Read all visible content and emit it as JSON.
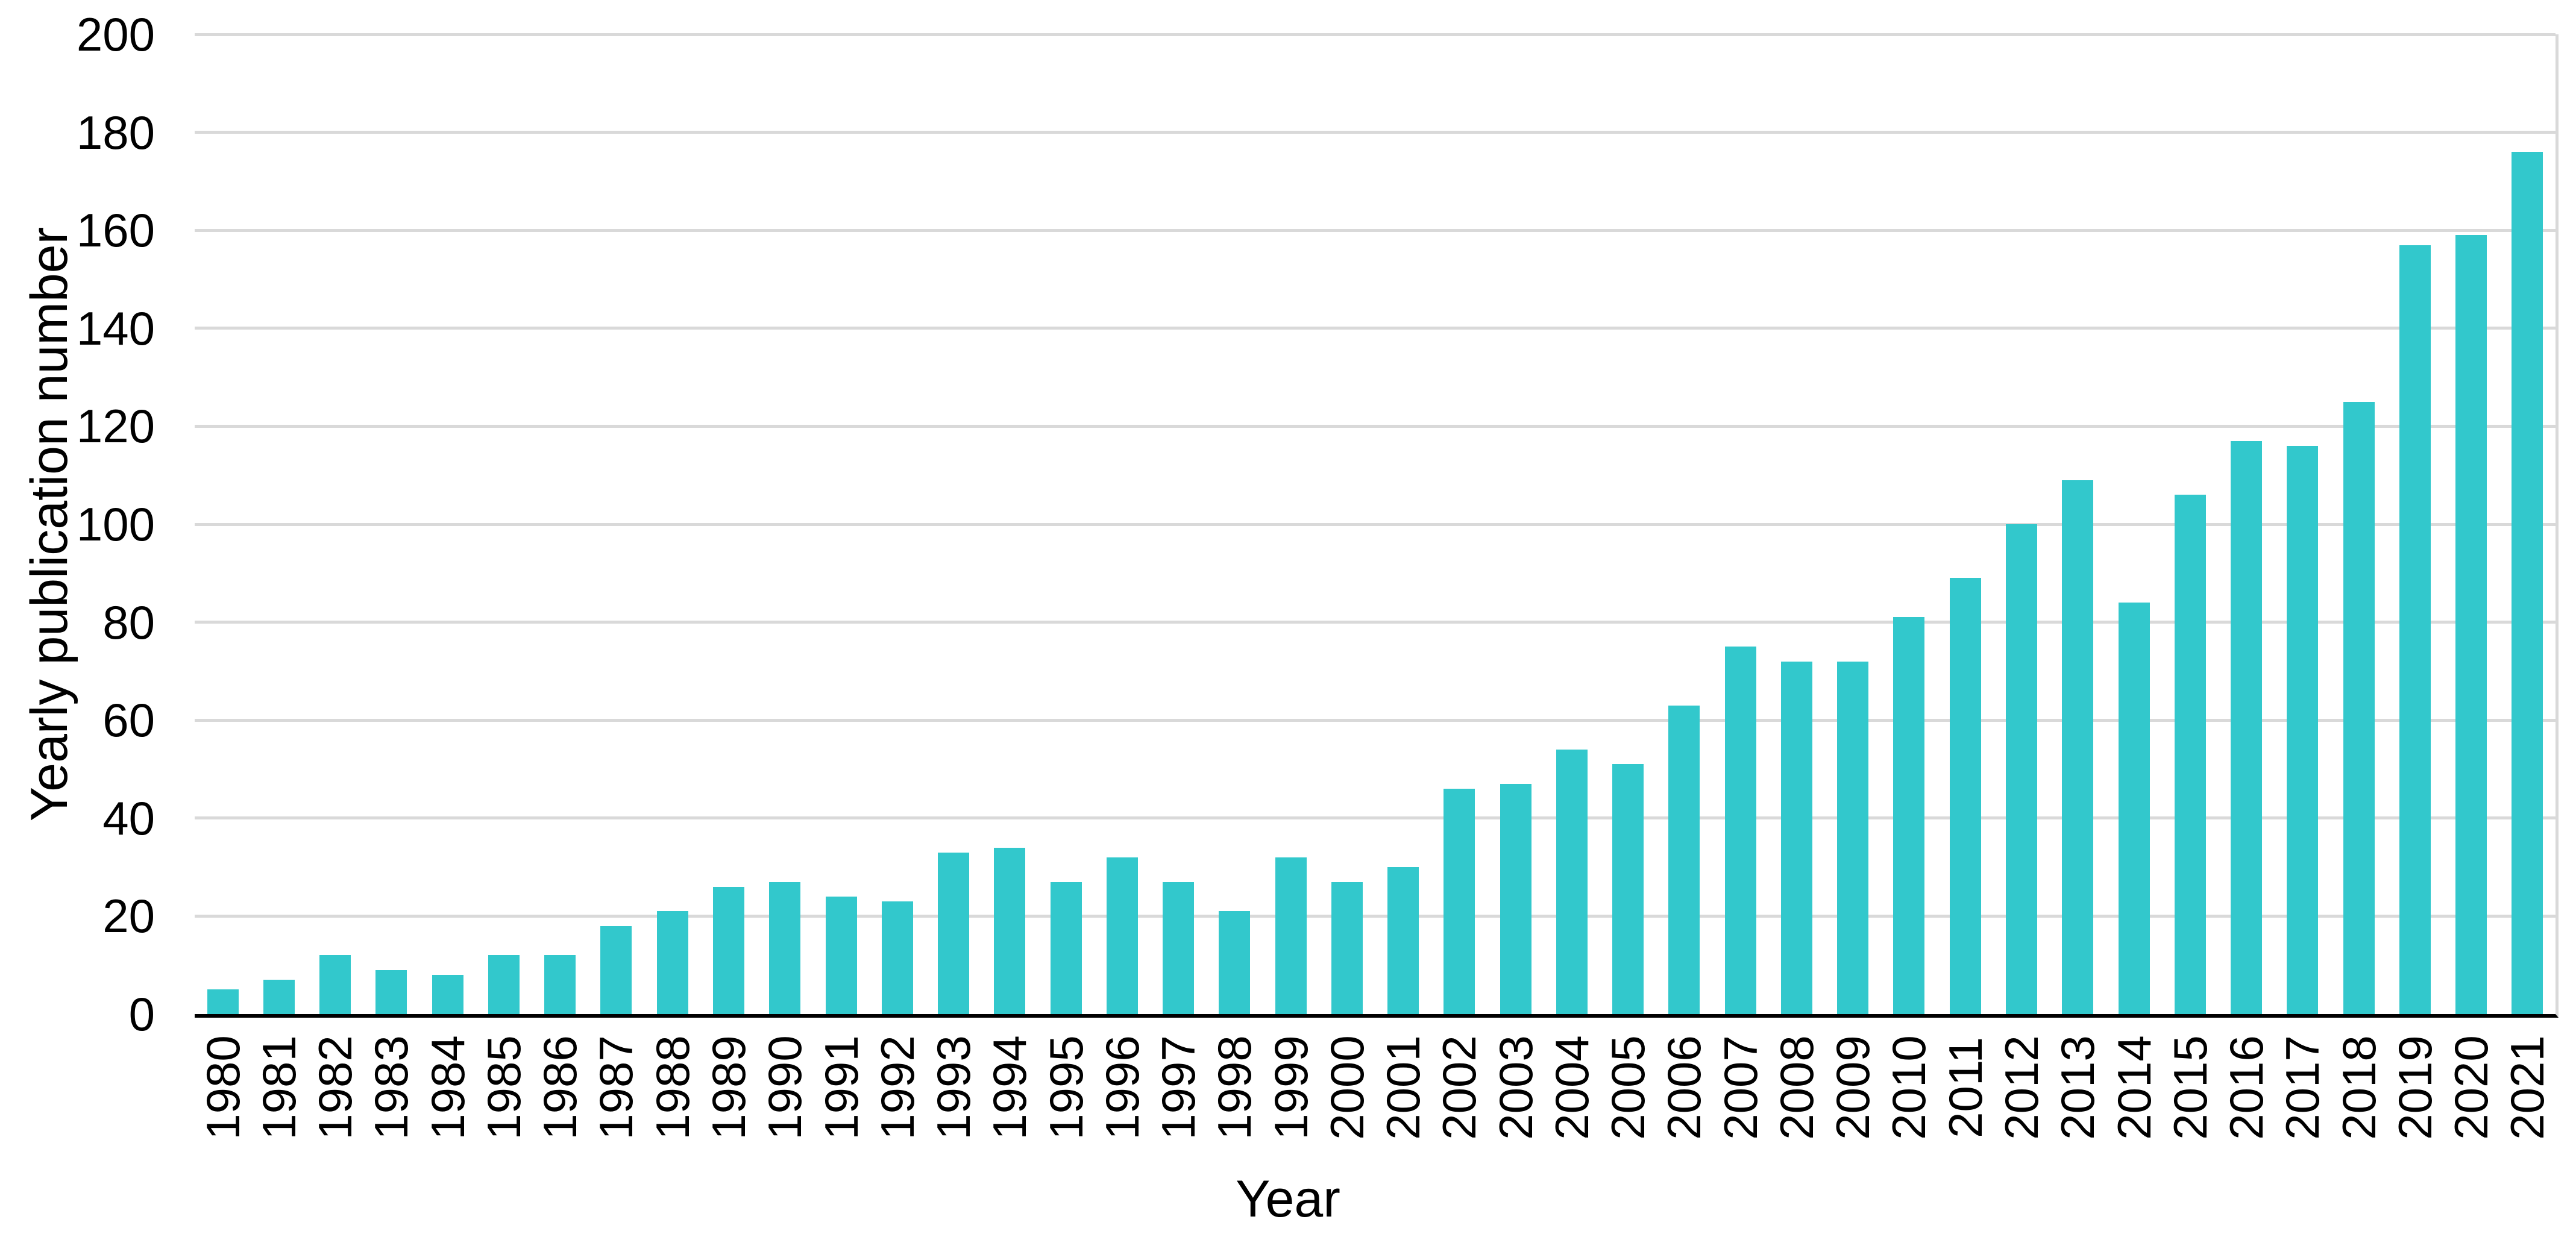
{
  "chart_data": {
    "type": "bar",
    "title": "",
    "xlabel": "Year",
    "ylabel": "Yearly publication number",
    "categories": [
      "1980",
      "1981",
      "1982",
      "1983",
      "1984",
      "1985",
      "1986",
      "1987",
      "1988",
      "1989",
      "1990",
      "1991",
      "1992",
      "1993",
      "1994",
      "1995",
      "1996",
      "1997",
      "1998",
      "1999",
      "2000",
      "2001",
      "2002",
      "2003",
      "2004",
      "2005",
      "2006",
      "2007",
      "2008",
      "2009",
      "2010",
      "2011",
      "2012",
      "2013",
      "2014",
      "2015",
      "2016",
      "2017",
      "2018",
      "2019",
      "2020",
      "2021"
    ],
    "values": [
      5,
      7,
      12,
      9,
      8,
      12,
      12,
      18,
      21,
      26,
      27,
      24,
      23,
      33,
      34,
      27,
      32,
      27,
      21,
      32,
      27,
      30,
      46,
      47,
      54,
      51,
      63,
      75,
      72,
      72,
      81,
      89,
      100,
      109,
      84,
      106,
      117,
      116,
      125,
      157,
      159,
      176
    ],
    "yticks": [
      0,
      20,
      40,
      60,
      80,
      100,
      120,
      140,
      160,
      180,
      200
    ],
    "ylim": [
      0,
      200
    ],
    "grid": true,
    "legend": false,
    "colors": {
      "bar": "#32C8CC",
      "gridline": "#D9D9D9",
      "axis": "#000000",
      "text": "#000000",
      "background": "#FFFFFF"
    }
  }
}
